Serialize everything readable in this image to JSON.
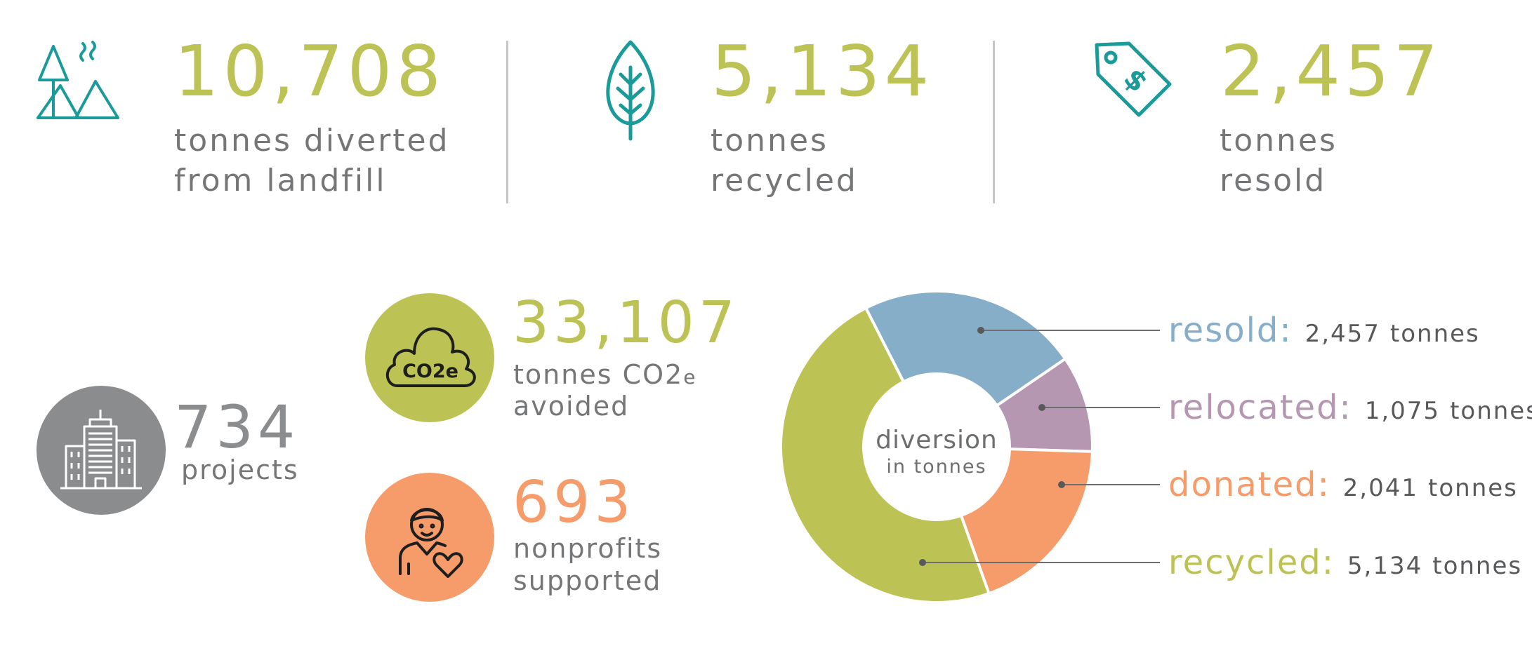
{
  "colors": {
    "green": "#bcc254",
    "teal": "#1b9a9a",
    "grey_text": "#757677",
    "grey_circle": "#8b8c8e",
    "orange": "#f69c6a",
    "blue": "#87aec8",
    "mauve": "#b597b2"
  },
  "stats_top": [
    {
      "icon": "mountains-icon",
      "value": "10,708",
      "line1": "tonnes diverted",
      "line2": "from landfill"
    },
    {
      "icon": "leaf-icon",
      "value": "5,134",
      "line1": "tonnes",
      "line2": "recycled"
    },
    {
      "icon": "price-tag-icon",
      "value": "2,457",
      "line1": "tonnes",
      "line2": "resold"
    }
  ],
  "projects": {
    "icon": "building-icon",
    "value": "734",
    "label": "projects"
  },
  "co2": {
    "icon_text": "CO2e",
    "value": "33,107",
    "line1_main": "tonnes CO2",
    "line1_sub": "e",
    "line2": "avoided"
  },
  "nonprofits": {
    "icon": "person-heart-icon",
    "value": "693",
    "line1": "nonprofits",
    "line2": "supported"
  },
  "chart_data": {
    "type": "pie",
    "donut": true,
    "center_title": "diversion",
    "center_subtitle": "in tonnes",
    "unit": "tonnes",
    "slices": [
      {
        "name": "resold",
        "value": 2457,
        "value_label": "2,457",
        "color": "#87aec8"
      },
      {
        "name": "relocated",
        "value": 1075,
        "value_label": "1,075",
        "color": "#b597b2"
      },
      {
        "name": "donated",
        "value": 2041,
        "value_label": "2,041",
        "color": "#f69c6a"
      },
      {
        "name": "recycled",
        "value": 5134,
        "value_label": "5,134",
        "color": "#bcc254"
      }
    ]
  }
}
